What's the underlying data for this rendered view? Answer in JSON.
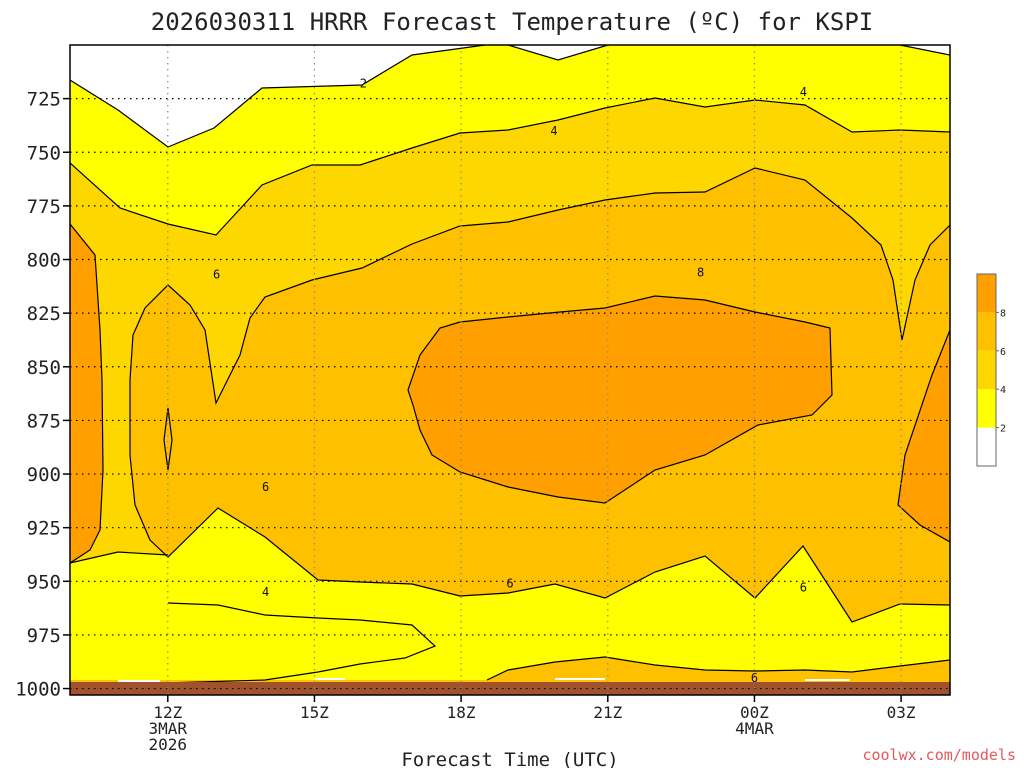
{
  "chart_data": {
    "type": "contour",
    "title": "2026030311 HRRR Forecast Temperature (ºC) for KSPI",
    "xlabel": "Forecast Time (UTC)",
    "ylabel": "",
    "credit": "coolwx.com/models",
    "x_axis": {
      "unit": "forecast hour",
      "range": [
        10,
        28
      ],
      "ticks": [
        {
          "x": 12,
          "lines": [
            "12Z",
            "3MAR",
            "2026"
          ]
        },
        {
          "x": 15,
          "lines": [
            "15Z"
          ]
        },
        {
          "x": 18,
          "lines": [
            "18Z"
          ]
        },
        {
          "x": 21,
          "lines": [
            "21Z"
          ]
        },
        {
          "x": 24,
          "lines": [
            "00Z",
            "4MAR"
          ]
        },
        {
          "x": 27,
          "lines": [
            "03Z"
          ]
        }
      ]
    },
    "y_axis": {
      "unit": "hPa",
      "range": [
        1003,
        700
      ],
      "inverted": true,
      "ticks": [
        725,
        750,
        775,
        800,
        825,
        850,
        875,
        900,
        925,
        950,
        975,
        1000
      ]
    },
    "grid": true,
    "legend": {
      "position": "right",
      "levels": [
        2,
        4,
        6,
        8
      ],
      "colors": [
        "#ffffff",
        "#ffff00",
        "#ffd700",
        "#ffc000",
        "#ffa000"
      ]
    },
    "ground_color": "#a0522d",
    "contour_labels": [
      {
        "value": "2",
        "x": 16.0,
        "y": 718
      },
      {
        "value": "4",
        "x": 19.9,
        "y": 740
      },
      {
        "value": "4",
        "x": 25.0,
        "y": 722
      },
      {
        "value": "6",
        "x": 13.0,
        "y": 807
      },
      {
        "value": "8",
        "x": 22.9,
        "y": 806
      },
      {
        "value": "6",
        "x": 14.0,
        "y": 906
      },
      {
        "value": "4",
        "x": 14.0,
        "y": 955
      },
      {
        "value": "6",
        "x": 19.0,
        "y": 951
      },
      {
        "value": "6",
        "x": 25.0,
        "y": 953
      },
      {
        "value": "6",
        "x": 24.0,
        "y": 995
      }
    ]
  }
}
